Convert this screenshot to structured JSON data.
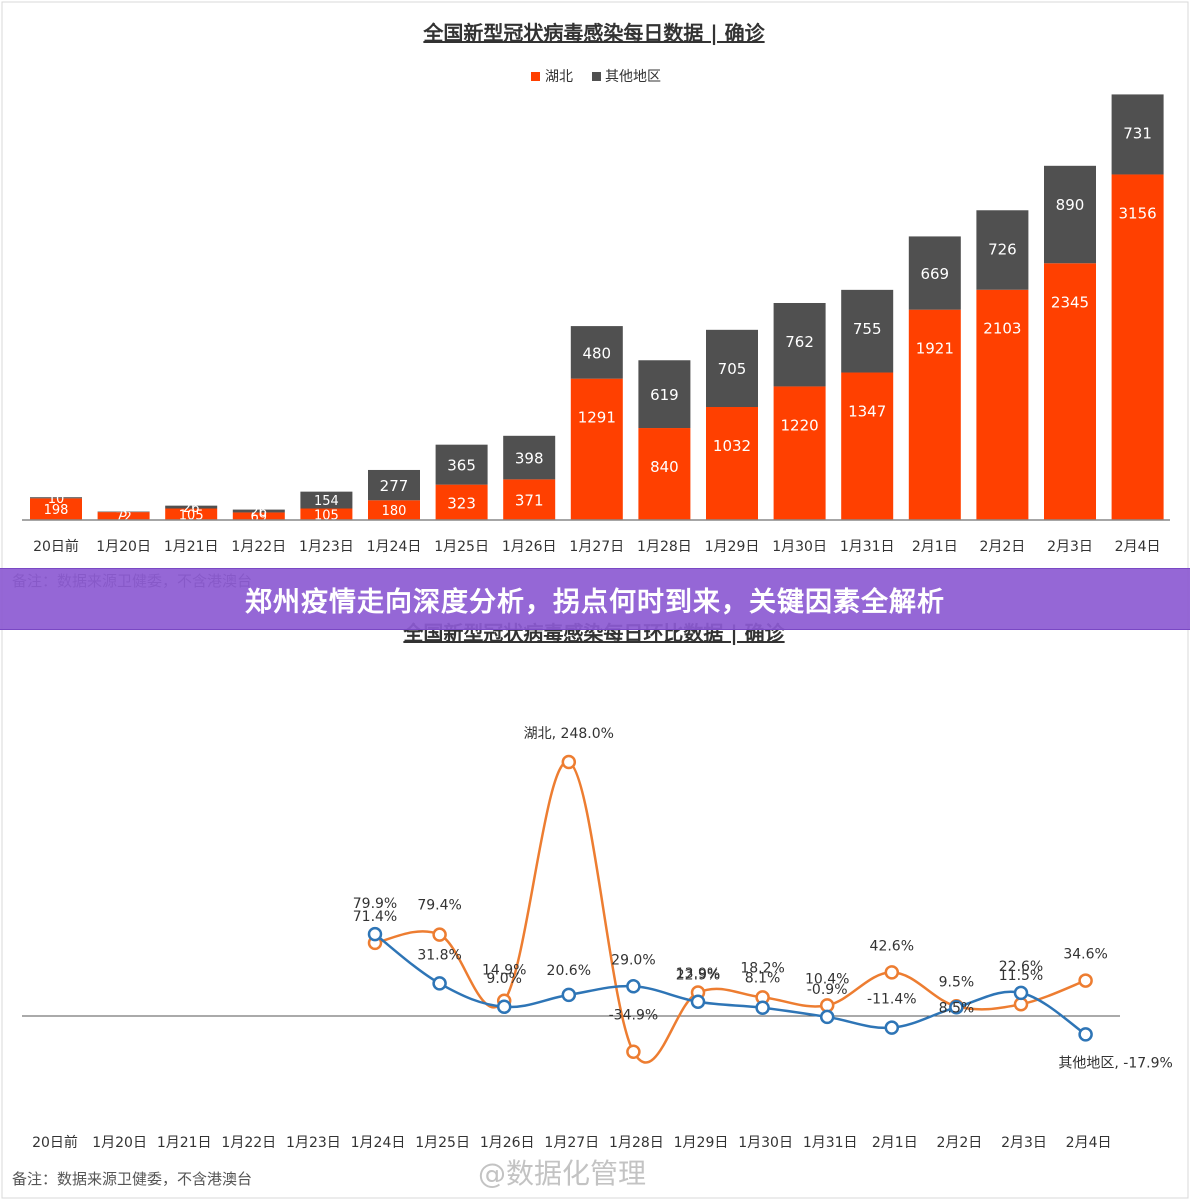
{
  "banner": {
    "headline": "郑州疫情走向深度分析，拐点何时到来，关键因素全解析"
  },
  "notes": {
    "source_top": "备注：数据来源卫健委，不含港澳台",
    "source_bottom": "备注：数据来源卫健委，不含港澳台"
  },
  "watermark": "@数据化管理",
  "colors": {
    "hubei": "#ff4000",
    "other": "#505050",
    "line_hubei": "#ed7d31",
    "line_other": "#2e75b6"
  },
  "chart_data": [
    {
      "type": "bar",
      "stacked": true,
      "title": "全国新型冠状病毒感染每日数据 | 确诊",
      "categories": [
        "20日前",
        "1月20日",
        "1月21日",
        "1月22日",
        "1月23日",
        "1月24日",
        "1月25日",
        "1月26日",
        "1月27日",
        "1月28日",
        "1月29日",
        "1月30日",
        "1月31日",
        "2月1日",
        "2月2日",
        "2月3日",
        "2月4日"
      ],
      "series": [
        {
          "name": "湖北",
          "values": [
            198,
            72,
            105,
            69,
            105,
            180,
            323,
            371,
            1291,
            840,
            1032,
            1220,
            1347,
            1921,
            2103,
            2345,
            3156
          ]
        },
        {
          "name": "其他地区",
          "values": [
            10,
            5,
            26,
            26,
            154,
            277,
            365,
            398,
            480,
            619,
            705,
            762,
            755,
            669,
            726,
            890,
            731
          ]
        }
      ],
      "ylim": [
        0,
        3900
      ],
      "legend": "top-center",
      "grid": false
    },
    {
      "type": "line",
      "title": "全国新型冠状病毒感染每日环比数据 | 确诊",
      "categories": [
        "20日前",
        "1月20日",
        "1月21日",
        "1月22日",
        "1月23日",
        "1月24日",
        "1月25日",
        "1月26日",
        "1月27日",
        "1月28日",
        "1月29日",
        "1月30日",
        "1月31日",
        "2月1日",
        "2月2日",
        "2月3日",
        "2月4日"
      ],
      "series": [
        {
          "name": "湖北",
          "values": [
            null,
            null,
            null,
            null,
            null,
            71.4,
            79.4,
            14.9,
            248.0,
            -34.9,
            22.9,
            18.2,
            10.4,
            42.6,
            9.5,
            11.5,
            34.6
          ],
          "labels": [
            null,
            null,
            null,
            null,
            null,
            "71.4%",
            "79.4%",
            "14.9%",
            "湖北, 248.0%",
            "-34.9%",
            "22.9%",
            "18.2%",
            "10.4%",
            "42.6%",
            "9.5%",
            "11.5%",
            "34.6%"
          ]
        },
        {
          "name": "其他地区",
          "values": [
            null,
            null,
            null,
            null,
            null,
            79.9,
            31.8,
            9.0,
            20.6,
            29.0,
            13.9,
            8.1,
            -0.9,
            -11.4,
            8.5,
            22.6,
            -17.9
          ],
          "labels": [
            null,
            null,
            null,
            null,
            null,
            "79.9%",
            "31.8%",
            "9.0%",
            "20.6%",
            "29.0%",
            "13.9%",
            "8.1%",
            "-0.9%",
            "-11.4%",
            "8.5%",
            "22.6%",
            "其他地区, -17.9%"
          ]
        }
      ],
      "ylim": [
        -60,
        260
      ],
      "zero_line": true,
      "grid": false
    }
  ]
}
